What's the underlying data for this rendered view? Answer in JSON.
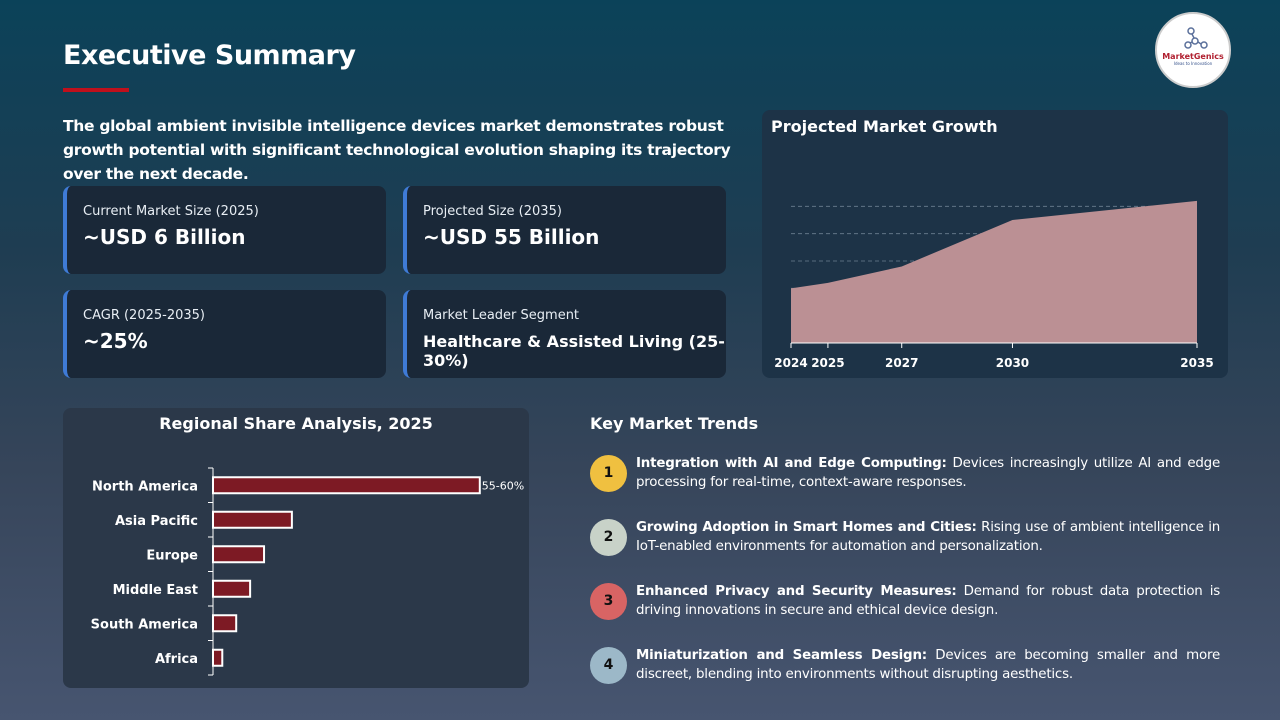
{
  "header": {
    "title": "Executive Summary",
    "intro": "The global ambient invisible intelligence devices market demonstrates robust growth potential with significant technological evolution shaping its trajectory over the next decade.",
    "logo_text": "MarketGenics",
    "logo_tagline": "Ideas to Innovation"
  },
  "cards": [
    {
      "label": "Current Market Size (2025)",
      "value": "~USD 6 Billion"
    },
    {
      "label": "Projected Size (2035)",
      "value": "~USD 55 Billion"
    },
    {
      "label": "CAGR (2025-2035)",
      "value": "~25%"
    },
    {
      "label": "Market Leader Segment",
      "value": "Healthcare & Assisted Living (25-30%)"
    }
  ],
  "colors": {
    "accent_red": "#c0101c",
    "card_border": "#3f7bd6",
    "area_fill": "#bb9094",
    "bar_fill": "#7d1a24"
  },
  "chart_data": [
    {
      "type": "area",
      "title": "Projected Market Growth",
      "categories": [
        "2024",
        "2025",
        "2027",
        "2030",
        "2035"
      ],
      "values": [
        2.0,
        2.2,
        2.8,
        4.5,
        5.2
      ],
      "ylim": [
        0,
        6
      ],
      "grid": true,
      "y_axis_labels": false,
      "color": "#bb9094"
    },
    {
      "type": "bar",
      "orientation": "horizontal",
      "title": "Regional Share Analysis, 2025",
      "categories": [
        "North America",
        "Asia Pacific",
        "Europe",
        "Middle East",
        "South America",
        "Africa"
      ],
      "values": [
        57.5,
        17,
        11,
        8,
        5,
        2
      ],
      "data_labels": [
        "55-60%",
        "",
        "",
        "",
        "",
        ""
      ],
      "color": "#7d1a24"
    }
  ],
  "trends": {
    "title": "Key Market Trends",
    "items": [
      {
        "num": "1",
        "color": "#f0c040",
        "head": "Integration with AI and Edge Computing:",
        "body": " Devices increasingly utilize AI and edge processing for real-time, context-aware responses."
      },
      {
        "num": "2",
        "color": "#c8d2c8",
        "head": "Growing Adoption in Smart Homes and Cities:",
        "body": " Rising use of ambient intelligence in IoT-enabled environments for automation and personalization."
      },
      {
        "num": "3",
        "color": "#d86464",
        "head": "Enhanced Privacy and Security Measures:",
        "body": " Demand for robust data protection is driving innovations in secure and ethical device design."
      },
      {
        "num": "4",
        "color": "#9cb8c8",
        "head": "Miniaturization and Seamless Design:",
        "body": " Devices are becoming smaller and more discreet, blending into environments without disrupting aesthetics."
      }
    ]
  }
}
